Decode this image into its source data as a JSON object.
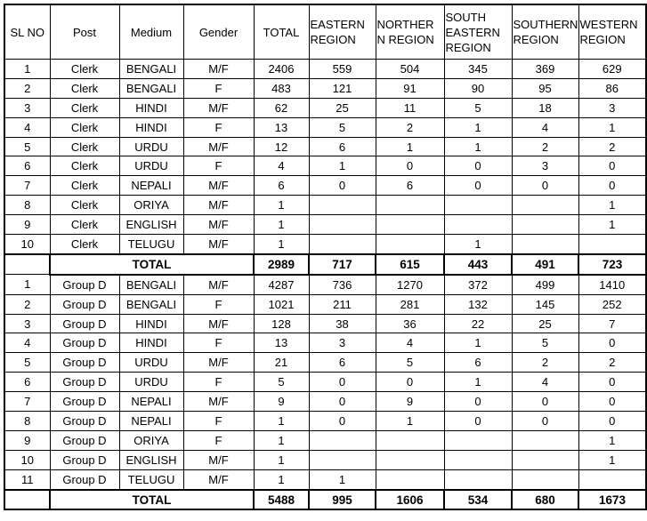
{
  "headers": [
    "SL NO",
    "Post",
    "Medium",
    "Gender",
    "TOTAL",
    "EASTERN REGION",
    "NORTHER N REGION",
    "SOUTH EASTERN REGION",
    "SOUTHERN REGION",
    "WESTERN REGION"
  ],
  "sections": [
    {
      "rows": [
        [
          "1",
          "Clerk",
          "BENGALI",
          "M/F",
          "2406",
          "559",
          "504",
          "345",
          "369",
          "629"
        ],
        [
          "2",
          "Clerk",
          "BENGALI",
          "F",
          "483",
          "121",
          "91",
          "90",
          "95",
          "86"
        ],
        [
          "3",
          "Clerk",
          "HINDI",
          "M/F",
          "62",
          "25",
          "11",
          "5",
          "18",
          "3"
        ],
        [
          "4",
          "Clerk",
          "HINDI",
          "F",
          "13",
          "5",
          "2",
          "1",
          "4",
          "1"
        ],
        [
          "5",
          "Clerk",
          "URDU",
          "M/F",
          "12",
          "6",
          "1",
          "1",
          "2",
          "2"
        ],
        [
          "6",
          "Clerk",
          "URDU",
          "F",
          "4",
          "1",
          "0",
          "0",
          "3",
          "0"
        ],
        [
          "7",
          "Clerk",
          "NEPALI",
          "M/F",
          "6",
          "0",
          "6",
          "0",
          "0",
          "0"
        ],
        [
          "8",
          "Clerk",
          "ORIYA",
          "M/F",
          "1",
          "",
          "",
          "",
          "",
          "1"
        ],
        [
          "9",
          "Clerk",
          "ENGLISH",
          "M/F",
          "1",
          "",
          "",
          "",
          "",
          "1"
        ],
        [
          "10",
          "Clerk",
          "TELUGU",
          "M/F",
          "1",
          "",
          "",
          "1",
          "",
          ""
        ]
      ],
      "total": [
        "TOTAL",
        "2989",
        "717",
        "615",
        "443",
        "491",
        "723"
      ]
    },
    {
      "rows": [
        [
          "1",
          "Group D",
          "BENGALI",
          "M/F",
          "4287",
          "736",
          "1270",
          "372",
          "499",
          "1410"
        ],
        [
          "2",
          "Group D",
          "BENGALI",
          "F",
          "1021",
          "211",
          "281",
          "132",
          "145",
          "252"
        ],
        [
          "3",
          "Group D",
          "HINDI",
          "M/F",
          "128",
          "38",
          "36",
          "22",
          "25",
          "7"
        ],
        [
          "4",
          "Group D",
          "HINDI",
          "F",
          "13",
          "3",
          "4",
          "1",
          "5",
          "0"
        ],
        [
          "5",
          "Group D",
          "URDU",
          "M/F",
          "21",
          "6",
          "5",
          "6",
          "2",
          "2"
        ],
        [
          "6",
          "Group D",
          "URDU",
          "F",
          "5",
          "0",
          "0",
          "1",
          "4",
          "0"
        ],
        [
          "7",
          "Group D",
          "NEPALI",
          "M/F",
          "9",
          "0",
          "9",
          "0",
          "0",
          "0"
        ],
        [
          "8",
          "Group D",
          "NEPALI",
          "F",
          "1",
          "0",
          "1",
          "0",
          "0",
          "0"
        ],
        [
          "9",
          "Group D",
          "ORIYA",
          "F",
          "1",
          "",
          "",
          "",
          "",
          "1"
        ],
        [
          "10",
          "Group D",
          "ENGLISH",
          "M/F",
          "1",
          "",
          "",
          "",
          "",
          "1"
        ],
        [
          "11",
          "Group D",
          "TELUGU",
          "M/F",
          "1",
          "1",
          "",
          "",
          "",
          ""
        ]
      ],
      "total": [
        "TOTAL",
        "5488",
        "995",
        "1606",
        "534",
        "680",
        "1673"
      ]
    }
  ]
}
